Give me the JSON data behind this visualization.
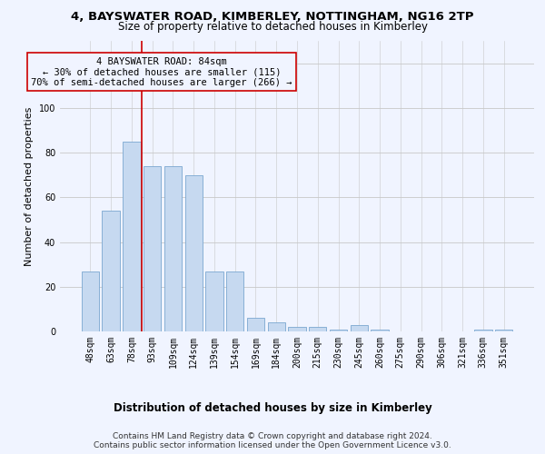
{
  "title": "4, BAYSWATER ROAD, KIMBERLEY, NOTTINGHAM, NG16 2TP",
  "subtitle": "Size of property relative to detached houses in Kimberley",
  "xlabel": "Distribution of detached houses by size in Kimberley",
  "ylabel": "Number of detached properties",
  "categories": [
    "48sqm",
    "63sqm",
    "78sqm",
    "93sqm",
    "109sqm",
    "124sqm",
    "139sqm",
    "154sqm",
    "169sqm",
    "184sqm",
    "200sqm",
    "215sqm",
    "230sqm",
    "245sqm",
    "260sqm",
    "275sqm",
    "290sqm",
    "306sqm",
    "321sqm",
    "336sqm",
    "351sqm"
  ],
  "values": [
    27,
    54,
    85,
    74,
    74,
    70,
    27,
    27,
    6,
    4,
    2,
    2,
    1,
    3,
    1,
    0,
    0,
    0,
    0,
    1,
    1
  ],
  "bar_color": "#c6d9f0",
  "bar_edge_color": "#7ba7d0",
  "ylim": [
    0,
    130
  ],
  "yticks": [
    0,
    20,
    40,
    60,
    80,
    100,
    120
  ],
  "vline_index": 2,
  "vline_color": "#cc0000",
  "annotation_line1": "4 BAYSWATER ROAD: 84sqm",
  "annotation_line2": "← 30% of detached houses are smaller (115)",
  "annotation_line3": "70% of semi-detached houses are larger (266) →",
  "footer_line1": "Contains HM Land Registry data © Crown copyright and database right 2024.",
  "footer_line2": "Contains public sector information licensed under the Open Government Licence v3.0.",
  "bg_color": "#f0f4ff",
  "grid_color": "#c8c8c8",
  "title_fontsize": 9.5,
  "subtitle_fontsize": 8.5,
  "ylabel_fontsize": 8,
  "xlabel_fontsize": 8.5,
  "tick_fontsize": 7,
  "ann_fontsize": 7.5,
  "footer_fontsize": 6.5
}
